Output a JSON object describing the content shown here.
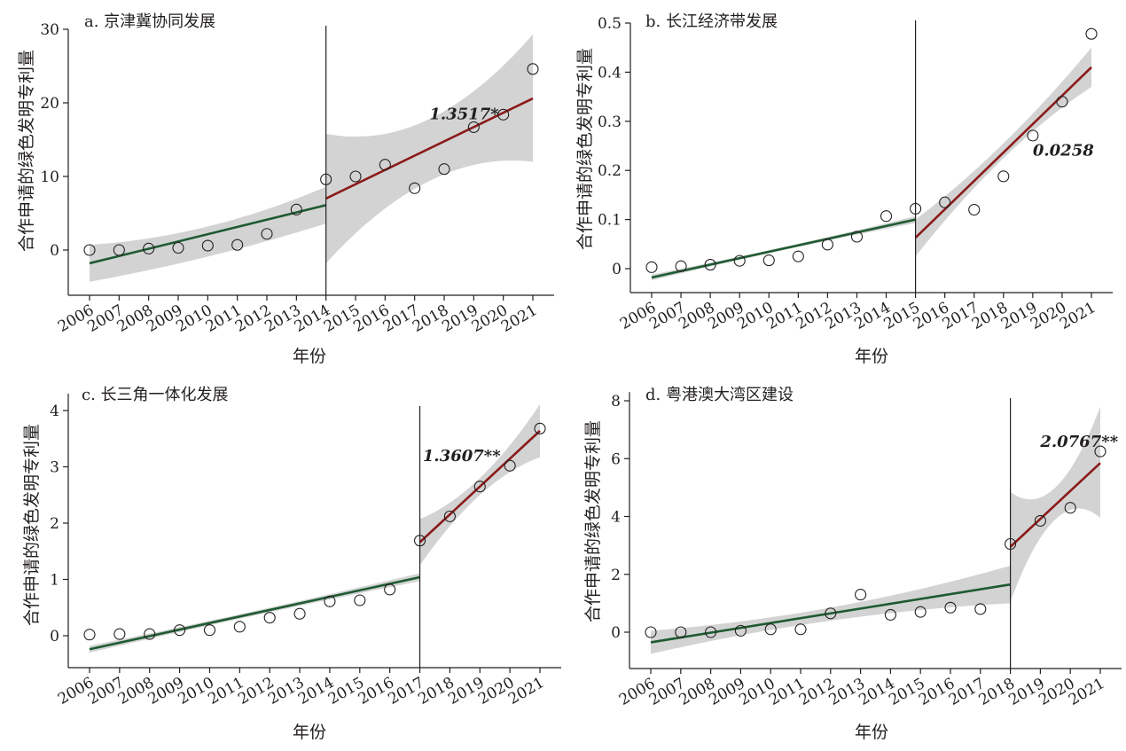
{
  "chart_data": [
    {
      "type": "scatter",
      "title": "a. 京津冀协同发展",
      "xlabel": "年份",
      "ylabel": "合作申请的绿色发明专利量",
      "x": [
        2006,
        2007,
        2008,
        2009,
        2010,
        2011,
        2012,
        2013,
        2014,
        2015,
        2016,
        2017,
        2018,
        2019,
        2020,
        2021
      ],
      "values": [
        0.0,
        0.0,
        0.2,
        0.3,
        0.6,
        0.7,
        2.2,
        5.5,
        9.6,
        10.0,
        11.6,
        8.4,
        11.0,
        16.7,
        18.4,
        24.6
      ],
      "ylim": [
        -6,
        30
      ],
      "yticks": [
        0,
        10,
        20,
        30
      ],
      "xticks": [
        "2006",
        "2007",
        "2008",
        "2009",
        "2010",
        "2011",
        "2012",
        "2013",
        "2014",
        "2015",
        "2016",
        "2017",
        "2018",
        "2019",
        "2020",
        "2021"
      ],
      "breakpoint": 2014,
      "pre_fit": {
        "start": [
          2006,
          -1.8
        ],
        "end": [
          2014,
          6.1
        ],
        "ci_start": [
          -4.3,
          0.7
        ],
        "ci_mid": [
          -0.9,
          3.2
        ],
        "ci_end": [
          3.6,
          8.6
        ]
      },
      "post_fit": {
        "start": [
          2014,
          7.0
        ],
        "end": [
          2021,
          20.6
        ],
        "ci_start": [
          -1.8,
          15.8
        ],
        "ci_mid": [
          9.4,
          17.8
        ],
        "ci_end": [
          12.0,
          29.3
        ]
      },
      "effect_label": "1.3517*",
      "effect_anchor": [
        2017.5,
        17.8
      ],
      "colors": {
        "pre": "#1e5a32",
        "post": "#8b1a1a",
        "band": "#d3d3d3"
      }
    },
    {
      "type": "scatter",
      "title": "b. 长江经济带发展",
      "xlabel": "年份",
      "ylabel": "合作申请的绿色发明专利量",
      "x": [
        2006,
        2007,
        2008,
        2009,
        2010,
        2011,
        2012,
        2013,
        2014,
        2015,
        2016,
        2017,
        2018,
        2019,
        2020,
        2021
      ],
      "values": [
        0.003,
        0.005,
        0.008,
        0.016,
        0.017,
        0.025,
        0.049,
        0.065,
        0.107,
        0.122,
        0.135,
        0.12,
        0.188,
        0.271,
        0.34,
        0.478
      ],
      "ylim": [
        -0.055,
        0.5
      ],
      "yticks": [
        0,
        0.1,
        0.2,
        0.3,
        0.4,
        0.5
      ],
      "xticks": [
        "2006",
        "2007",
        "2008",
        "2009",
        "2010",
        "2011",
        "2012",
        "2013",
        "2014",
        "2015",
        "2016",
        "2017",
        "2018",
        "2019",
        "2020",
        "2021"
      ],
      "breakpoint": 2015,
      "pre_fit": {
        "start": [
          2006,
          -0.018
        ],
        "end": [
          2015,
          0.1
        ],
        "ci_start": [
          -0.024,
          -0.012
        ],
        "ci_mid": [
          0.038,
          0.044
        ],
        "ci_end": [
          0.093,
          0.107
        ]
      },
      "post_fit": {
        "start": [
          2015,
          0.063
        ],
        "end": [
          2021,
          0.41
        ],
        "ci_start": [
          0.025,
          0.1
        ],
        "ci_mid": [
          0.225,
          0.255
        ],
        "ci_end": [
          0.37,
          0.45
        ]
      },
      "effect_label": "0.0258",
      "effect_anchor": [
        2019.0,
        0.23
      ],
      "colors": {
        "pre": "#1e5a32",
        "post": "#8b1a1a",
        "band": "#d3d3d3"
      }
    },
    {
      "type": "scatter",
      "title": "c. 长三角一体化发展",
      "xlabel": "年份",
      "ylabel": "合作申请的绿色发明专利量",
      "x": [
        2006,
        2007,
        2008,
        2009,
        2010,
        2011,
        2012,
        2013,
        2014,
        2015,
        2016,
        2017,
        2018,
        2019,
        2020,
        2021
      ],
      "values": [
        0.02,
        0.03,
        0.03,
        0.1,
        0.1,
        0.16,
        0.32,
        0.39,
        0.61,
        0.63,
        0.82,
        1.69,
        2.12,
        2.65,
        3.02,
        3.68
      ],
      "ylim": [
        -0.5,
        4.3
      ],
      "yticks": [
        0,
        1,
        2,
        3,
        4
      ],
      "xticks": [
        "2006",
        "2007",
        "2008",
        "2009",
        "2010",
        "2011",
        "2012",
        "2013",
        "2014",
        "2015",
        "2016",
        "2017",
        "2018",
        "2019",
        "2020",
        "2021"
      ],
      "breakpoint": 2017,
      "pre_fit": {
        "start": [
          2006,
          -0.24
        ],
        "end": [
          2017,
          1.04
        ],
        "ci_start": [
          -0.3,
          -0.18
        ],
        "ci_mid": [
          0.36,
          0.44
        ],
        "ci_end": [
          0.97,
          1.11
        ]
      },
      "post_fit": {
        "start": [
          2017,
          1.66
        ],
        "end": [
          2021,
          3.64
        ],
        "ci_start": [
          1.25,
          2.07
        ],
        "ci_mid": [
          2.5,
          2.8
        ],
        "ci_end": [
          3.17,
          4.11
        ]
      },
      "effect_label": "1.3607**",
      "effect_anchor": [
        2017.1,
        3.1
      ],
      "colors": {
        "pre": "#1e5a32",
        "post": "#8b1a1a",
        "band": "#d3d3d3"
      }
    },
    {
      "type": "scatter",
      "title": "d. 粤港澳大湾区建设",
      "xlabel": "年份",
      "ylabel": "合作申请的绿色发明专利量",
      "x": [
        2006,
        2007,
        2008,
        2009,
        2010,
        2011,
        2012,
        2013,
        2014,
        2015,
        2016,
        2017,
        2018,
        2019,
        2020,
        2021
      ],
      "values": [
        0.0,
        0.0,
        0.0,
        0.05,
        0.1,
        0.1,
        0.65,
        1.3,
        0.6,
        0.7,
        0.85,
        0.8,
        3.05,
        3.85,
        4.3,
        6.25
      ],
      "ylim": [
        -1.1,
        8.3
      ],
      "yticks": [
        0,
        2,
        4,
        6,
        8
      ],
      "xticks": [
        "2006",
        "2007",
        "2008",
        "2009",
        "2010",
        "2011",
        "2012",
        "2013",
        "2014",
        "2015",
        "2016",
        "2017",
        "2018",
        "2019",
        "2020",
        "2021"
      ],
      "breakpoint": 2018,
      "pre_fit": {
        "start": [
          2006,
          -0.35
        ],
        "end": [
          2018,
          1.65
        ],
        "ci_start": [
          -0.75,
          0.05
        ],
        "ci_mid": [
          0.4,
          0.85
        ],
        "ci_end": [
          1.0,
          2.3
        ]
      },
      "post_fit": {
        "start": [
          2018,
          2.95
        ],
        "end": [
          2021,
          5.85
        ],
        "ci_start": [
          1.05,
          4.85
        ],
        "ci_mid": [
          3.9,
          5.0
        ],
        "ci_end": [
          3.95,
          7.8
        ]
      },
      "effect_label": "2.0767**",
      "effect_anchor": [
        2019.0,
        6.4
      ],
      "colors": {
        "pre": "#1e5a32",
        "post": "#8b1a1a",
        "band": "#d3d3d3"
      }
    }
  ]
}
